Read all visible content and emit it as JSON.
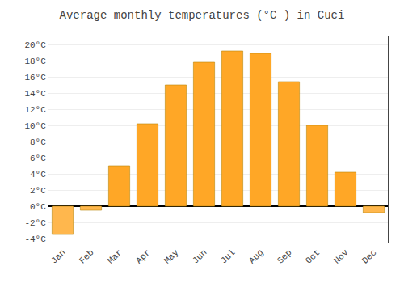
{
  "chart_data": {
    "type": "bar",
    "title": "Average monthly temperatures (°C ) in Cuci",
    "categories": [
      "Jan",
      "Feb",
      "Mar",
      "Apr",
      "May",
      "Jun",
      "Jul",
      "Aug",
      "Sep",
      "Oct",
      "Nov",
      "Dec"
    ],
    "values": [
      -3.5,
      -0.5,
      5.0,
      10.2,
      15.0,
      17.8,
      19.2,
      18.9,
      15.4,
      10.0,
      4.2,
      -0.8
    ],
    "colors": [
      "#FFB74D",
      "#FFB74D",
      "#FFA726",
      "#FFA726",
      "#FFA726",
      "#FFA726",
      "#FFA726",
      "#FFA726",
      "#FFA726",
      "#FFA726",
      "#FFA726",
      "#FFB74D"
    ],
    "ylim": [
      -4.5,
      21.0
    ],
    "yticks": [
      {
        "value": -4,
        "label": "-4°C"
      },
      {
        "value": -2,
        "label": "-2°C"
      },
      {
        "value": 0,
        "label": "0°C"
      },
      {
        "value": 2,
        "label": "2°C"
      },
      {
        "value": 4,
        "label": "4°C"
      },
      {
        "value": 6,
        "label": "6°C"
      },
      {
        "value": 8,
        "label": "8°C"
      },
      {
        "value": 10,
        "label": "10°C"
      },
      {
        "value": 12,
        "label": "12°C"
      },
      {
        "value": 14,
        "label": "14°C"
      },
      {
        "value": 16,
        "label": "16°C"
      },
      {
        "value": 18,
        "label": "18°C"
      },
      {
        "value": 20,
        "label": "20°C"
      }
    ],
    "grid": true
  }
}
